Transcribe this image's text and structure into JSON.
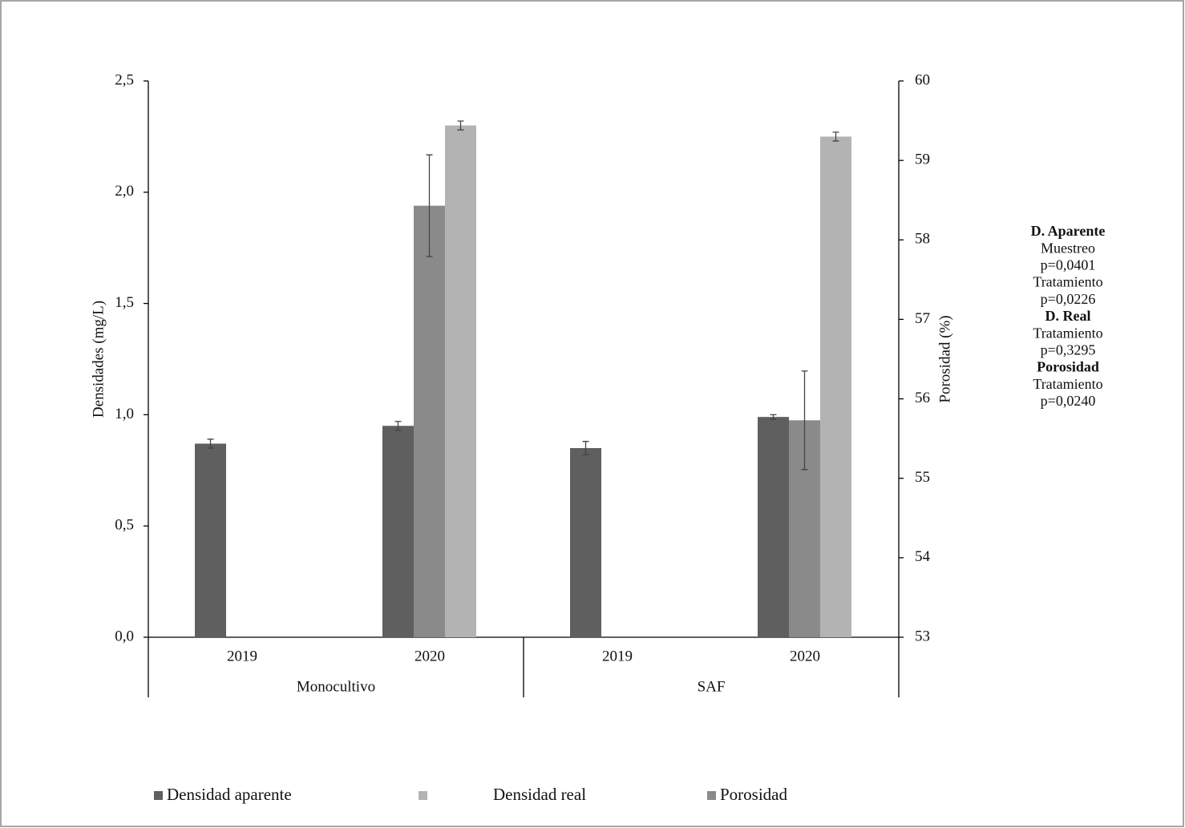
{
  "chart_data": {
    "type": "bar",
    "y_label": "Densidades (mg/L)",
    "y2_label": "Porosidad (%)",
    "categories": [
      "2019",
      "2020",
      "2019",
      "2020"
    ],
    "groups": [
      "Monocultivo",
      "SAF"
    ],
    "series": [
      {
        "name": "Densidad aparente",
        "color": "#5f5f5f",
        "values": [
          0.87,
          0.95,
          0.85,
          0.99
        ],
        "errors": [
          0.02,
          0.02,
          0.03,
          0.01
        ]
      },
      {
        "name": "Densidad real",
        "color": "#b3b3b3",
        "values": [
          null,
          2.3,
          null,
          2.25
        ],
        "errors": [
          null,
          0.02,
          null,
          0.02
        ]
      },
      {
        "name": "Porosidad",
        "color": "#8a8a8a",
        "axis": "y2",
        "values": [
          null,
          58.43,
          null,
          55.73
        ],
        "errors": [
          null,
          0.64,
          null,
          0.62
        ]
      }
    ],
    "ylim": [
      0,
      2.5
    ],
    "yticks": [
      {
        "value": 0,
        "label": "0,0"
      },
      {
        "value": 0.5,
        "label": "0,5"
      },
      {
        "value": 1,
        "label": "1,0"
      },
      {
        "value": 1.5,
        "label": "1,5"
      },
      {
        "value": 2,
        "label": "2,0"
      },
      {
        "value": 2.5,
        "label": "2,5"
      }
    ],
    "y2lim": [
      53,
      60
    ],
    "y2ticks": [
      53,
      54,
      55,
      56,
      57,
      58,
      59,
      60
    ],
    "annotations": [
      {
        "text": "D. Aparente",
        "bold": true
      },
      {
        "text": "Muestreo",
        "bold": false
      },
      {
        "text": "p=0,0401",
        "bold": false
      },
      {
        "text": "Tratamiento",
        "bold": false
      },
      {
        "text": "p=0,0226",
        "bold": false
      },
      {
        "text": "D. Real",
        "bold": true
      },
      {
        "text": "Tratamiento",
        "bold": false
      },
      {
        "text": "p=0,3295",
        "bold": false
      },
      {
        "text": "Porosidad",
        "bold": true
      },
      {
        "text": "Tratamiento",
        "bold": false
      },
      {
        "text": "p=0,0240",
        "bold": false
      }
    ]
  }
}
